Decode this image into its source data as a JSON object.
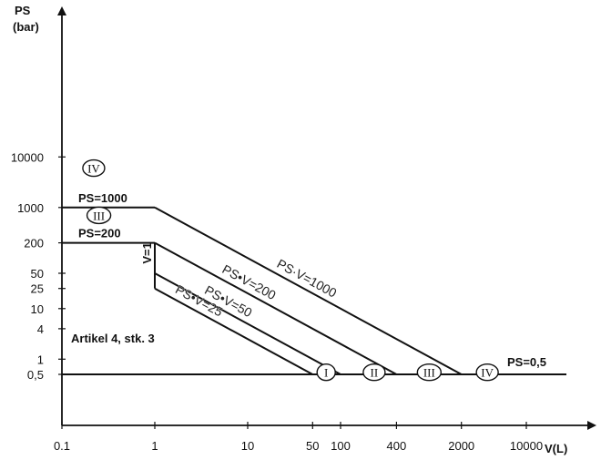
{
  "chart_data": {
    "type": "line",
    "x_axis": {
      "label": "V(L)",
      "scale": "log",
      "ticks": [
        "0.1",
        "1",
        "10",
        "50",
        "100",
        "400",
        "2000",
        "10000"
      ]
    },
    "y_axis": {
      "label_line1": "PS",
      "label_line2": "(bar)",
      "scale": "log",
      "ticks": [
        "0,5",
        "1",
        "4",
        "10",
        "25",
        "50",
        "200",
        "1000",
        "10000"
      ]
    },
    "series": [
      {
        "name": "PS=1000",
        "kind": "horizontal",
        "points": [
          [
            0.1,
            1000
          ],
          [
            1,
            1000
          ]
        ]
      },
      {
        "name": "PS=200",
        "kind": "horizontal",
        "points": [
          [
            0.1,
            200
          ],
          [
            1,
            200
          ]
        ]
      },
      {
        "name": "V=1",
        "kind": "vertical",
        "points": [
          [
            1,
            25
          ],
          [
            1,
            200
          ]
        ]
      },
      {
        "name": "PS·V=1000",
        "kind": "diagonal",
        "points": [
          [
            1,
            1000
          ],
          [
            2000,
            0.5
          ]
        ]
      },
      {
        "name": "PS•V=200",
        "kind": "diagonal",
        "points": [
          [
            1,
            200
          ],
          [
            400,
            0.5
          ]
        ]
      },
      {
        "name": "PS•V=50",
        "kind": "diagonal",
        "points": [
          [
            1,
            50
          ],
          [
            100,
            0.5
          ]
        ]
      },
      {
        "name": "PS•V=25",
        "kind": "diagonal",
        "points": [
          [
            1,
            25
          ],
          [
            50,
            0.5
          ]
        ]
      },
      {
        "name": "PS=0,5",
        "kind": "horizontal",
        "points": [
          [
            0.1,
            0.5
          ],
          [
            50000,
            0.5
          ]
        ]
      }
    ],
    "categories_marked": [
      {
        "label": "IV",
        "x": 0.22,
        "y": 6000
      },
      {
        "label": "III",
        "x": 0.25,
        "y": 700
      },
      {
        "label": "I",
        "x": 70,
        "y": 0.55
      },
      {
        "label": "II",
        "x": 230,
        "y": 0.55
      },
      {
        "label": "III",
        "x": 900,
        "y": 0.55
      },
      {
        "label": "IV",
        "x": 3800,
        "y": 0.55
      }
    ],
    "annotation": "Artikel 4, stk. 3",
    "grid": false
  }
}
